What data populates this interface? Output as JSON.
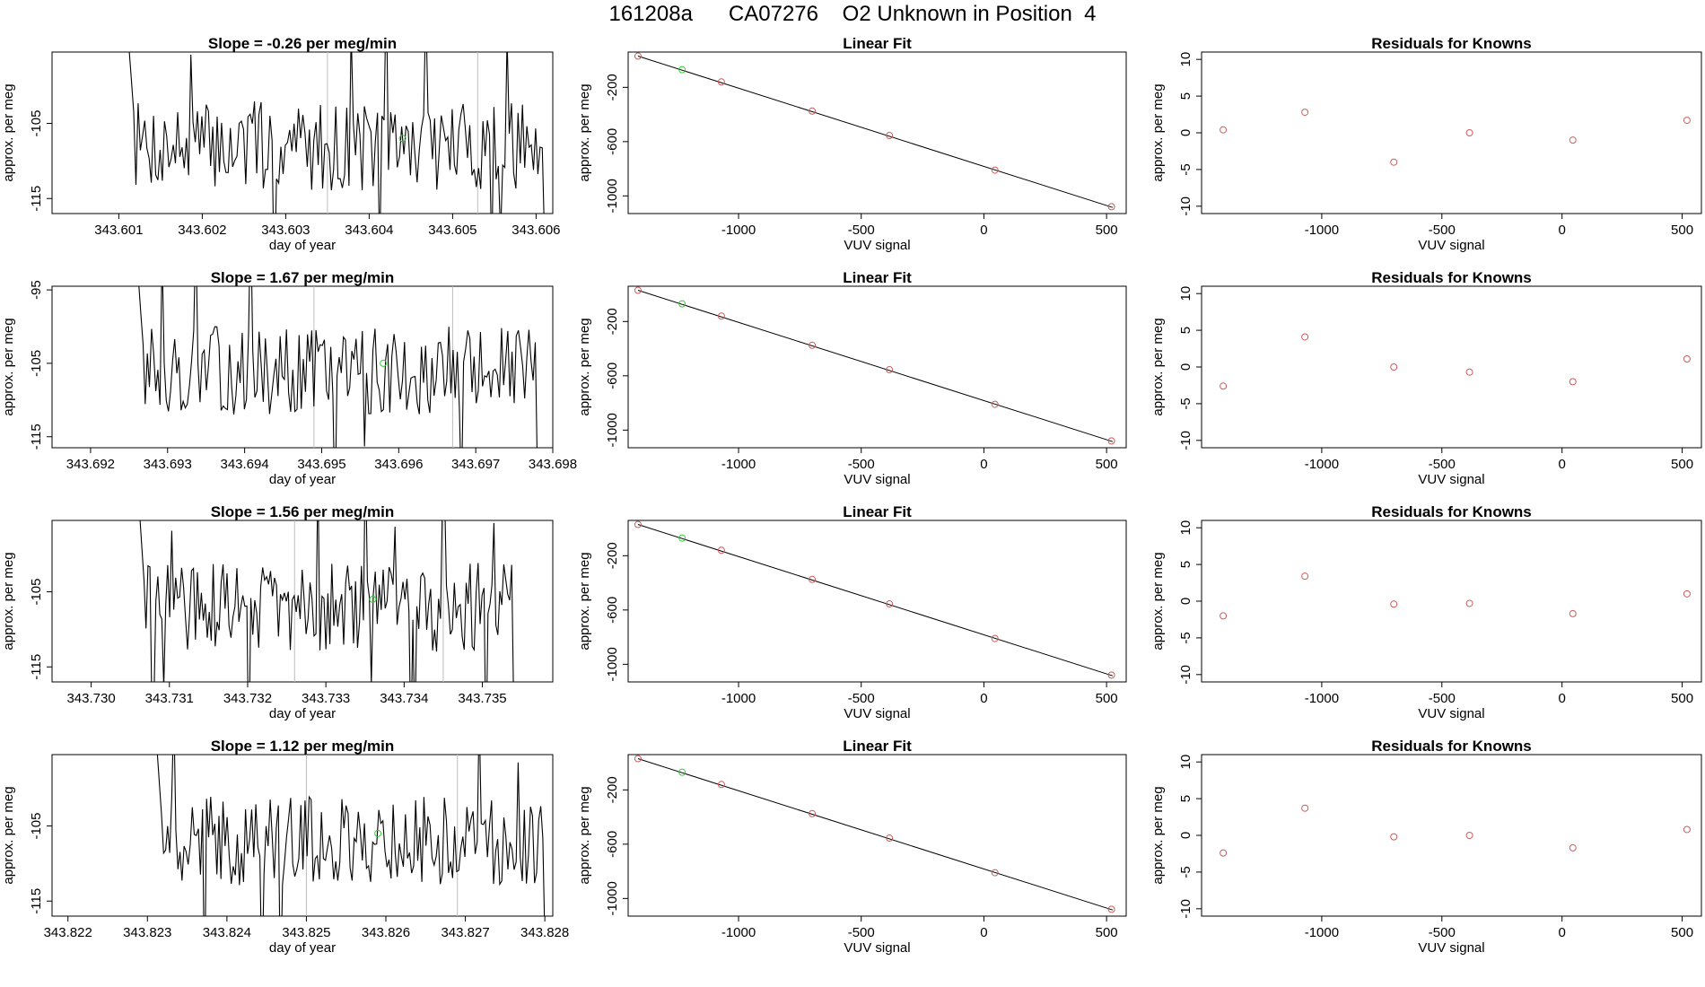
{
  "header": {
    "title": "161208a      CA07276    O2 Unknown in Position  4"
  },
  "colors": {
    "line": "#000000",
    "known": "#cd5c5c",
    "unknown": "#32cd32",
    "vline": "#bebebe"
  },
  "chart_data": [
    {
      "type": "line",
      "panel": "timeseries",
      "title": "Slope =  -0.26  per meg/min",
      "xlabel": "day of year",
      "ylabel": "approx. per meg",
      "xlim": [
        343.6002,
        343.6062
      ],
      "ylim": [
        -117,
        -95.5
      ],
      "xticks": [
        343.601,
        343.602,
        343.603,
        343.604,
        343.605,
        343.606
      ],
      "xtick_labels": [
        "343.601",
        "343.602",
        "343.603",
        "343.604",
        "343.605",
        "343.606"
      ],
      "yticks": [
        -115,
        -105
      ],
      "ytick_labels": [
        "-115",
        "-105"
      ],
      "vlines": [
        343.6035,
        343.6053
      ],
      "unknown_point": {
        "x": 343.6044,
        "y": -107
      },
      "start": 343.6011,
      "end": 343.6061,
      "seed": 7
    },
    {
      "type": "scatter",
      "panel": "fit",
      "title": "Linear Fit",
      "xlabel": "VUV signal",
      "ylabel": "approx. per meg",
      "xlim": [
        -1450,
        580
      ],
      "ylim": [
        -1130,
        60
      ],
      "xticks": [
        -1000,
        -500,
        0,
        500
      ],
      "xtick_labels": [
        "-1000",
        "-500",
        "0",
        "500"
      ],
      "yticks": [
        -1000,
        -600,
        -200
      ],
      "ytick_labels": [
        "-1000",
        "-600",
        "-200"
      ],
      "line": {
        "x": [
          -1410,
          525
        ],
        "y": [
          30,
          -1085
        ]
      },
      "points": [
        {
          "x": -1410,
          "y": 30
        },
        {
          "x": -1070,
          "y": -160
        },
        {
          "x": -700,
          "y": -375
        },
        {
          "x": -385,
          "y": -555
        },
        {
          "x": 45,
          "y": -810
        },
        {
          "x": 520,
          "y": -1080
        }
      ],
      "unknown_point": {
        "x": -1230,
        "y": -70
      }
    },
    {
      "type": "scatter",
      "panel": "residuals",
      "title": "Residuals for Knowns",
      "xlabel": "VUV signal",
      "ylabel": "approx. per meg",
      "xlim": [
        -1500,
        580
      ],
      "ylim": [
        -11,
        11
      ],
      "xticks": [
        -1000,
        -500,
        0,
        500
      ],
      "xtick_labels": [
        "-1000",
        "-500",
        "0",
        "500"
      ],
      "yticks": [
        -10,
        -5,
        0,
        5,
        10
      ],
      "ytick_labels": [
        "-10",
        "-5",
        "0",
        "5",
        "10"
      ],
      "points": [
        {
          "x": -1410,
          "y": 0.4
        },
        {
          "x": -1070,
          "y": 2.8
        },
        {
          "x": -700,
          "y": -4
        },
        {
          "x": -385,
          "y": 0
        },
        {
          "x": 45,
          "y": -1
        },
        {
          "x": 520,
          "y": 1.7
        }
      ]
    },
    {
      "type": "line",
      "panel": "timeseries",
      "title": "Slope =  1.67  per meg/min",
      "xlabel": "day of year",
      "ylabel": "approx. per meg",
      "xlim": [
        343.6915,
        343.698
      ],
      "ylim": [
        -116.5,
        -94.5
      ],
      "xticks": [
        343.692,
        343.693,
        343.694,
        343.695,
        343.696,
        343.697,
        343.698
      ],
      "xtick_labels": [
        "343.692",
        "343.693",
        "343.694",
        "343.695",
        "343.696",
        "343.697",
        "343.698"
      ],
      "yticks": [
        -115,
        -105,
        -95
      ],
      "ytick_labels": [
        "-115",
        "-105",
        "-95"
      ],
      "vlines": [
        343.6949,
        343.6967
      ],
      "unknown_point": {
        "x": 343.6958,
        "y": -105
      },
      "start": 343.6926,
      "end": 343.6978,
      "seed": 13
    },
    {
      "type": "scatter",
      "panel": "fit",
      "title": "Linear Fit",
      "xlabel": "VUV signal",
      "ylabel": "approx. per meg",
      "xlim": [
        -1450,
        580
      ],
      "ylim": [
        -1130,
        60
      ],
      "xticks": [
        -1000,
        -500,
        0,
        500
      ],
      "xtick_labels": [
        "-1000",
        "-500",
        "0",
        "500"
      ],
      "yticks": [
        -1000,
        -600,
        -200
      ],
      "ytick_labels": [
        "-1000",
        "-600",
        "-200"
      ],
      "line": {
        "x": [
          -1410,
          525
        ],
        "y": [
          30,
          -1085
        ]
      },
      "points": [
        {
          "x": -1410,
          "y": 30
        },
        {
          "x": -1070,
          "y": -160
        },
        {
          "x": -700,
          "y": -375
        },
        {
          "x": -385,
          "y": -555
        },
        {
          "x": 45,
          "y": -810
        },
        {
          "x": 520,
          "y": -1080
        }
      ],
      "unknown_point": {
        "x": -1230,
        "y": -70
      }
    },
    {
      "type": "scatter",
      "panel": "residuals",
      "title": "Residuals for Knowns",
      "xlabel": "VUV signal",
      "ylabel": "approx. per meg",
      "xlim": [
        -1500,
        580
      ],
      "ylim": [
        -11,
        11
      ],
      "xticks": [
        -1000,
        -500,
        0,
        500
      ],
      "xtick_labels": [
        "-1000",
        "-500",
        "0",
        "500"
      ],
      "yticks": [
        -10,
        -5,
        0,
        5,
        10
      ],
      "ytick_labels": [
        "-10",
        "-5",
        "0",
        "5",
        "10"
      ],
      "points": [
        {
          "x": -1410,
          "y": -2.6
        },
        {
          "x": -1070,
          "y": 4.1
        },
        {
          "x": -700,
          "y": 0
        },
        {
          "x": -385,
          "y": -0.7
        },
        {
          "x": 45,
          "y": -2
        },
        {
          "x": 520,
          "y": 1.1
        }
      ]
    },
    {
      "type": "line",
      "panel": "timeseries",
      "title": "Slope =  1.56  per meg/min",
      "xlabel": "day of year",
      "ylabel": "approx. per meg",
      "xlim": [
        343.7295,
        343.7359
      ],
      "ylim": [
        -117,
        -95.5
      ],
      "xticks": [
        343.73,
        343.731,
        343.732,
        343.733,
        343.734,
        343.735
      ],
      "xtick_labels": [
        "343.730",
        "343.731",
        "343.732",
        "343.733",
        "343.734",
        "343.735"
      ],
      "yticks": [
        -115,
        -105
      ],
      "ytick_labels": [
        "-115",
        "-105"
      ],
      "vlines": [
        343.7326,
        343.7345
      ],
      "unknown_point": {
        "x": 343.7336,
        "y": -106
      },
      "start": 343.7306,
      "end": 343.7354,
      "seed": 29
    },
    {
      "type": "scatter",
      "panel": "fit",
      "title": "Linear Fit",
      "xlabel": "VUV signal",
      "ylabel": "approx. per meg",
      "xlim": [
        -1450,
        580
      ],
      "ylim": [
        -1130,
        60
      ],
      "xticks": [
        -1000,
        -500,
        0,
        500
      ],
      "xtick_labels": [
        "-1000",
        "-500",
        "0",
        "500"
      ],
      "yticks": [
        -1000,
        -600,
        -200
      ],
      "ytick_labels": [
        "-1000",
        "-600",
        "-200"
      ],
      "line": {
        "x": [
          -1410,
          525
        ],
        "y": [
          30,
          -1085
        ]
      },
      "points": [
        {
          "x": -1410,
          "y": 30
        },
        {
          "x": -1070,
          "y": -160
        },
        {
          "x": -700,
          "y": -375
        },
        {
          "x": -385,
          "y": -555
        },
        {
          "x": 45,
          "y": -810
        },
        {
          "x": 520,
          "y": -1080
        }
      ],
      "unknown_point": {
        "x": -1230,
        "y": -70
      }
    },
    {
      "type": "scatter",
      "panel": "residuals",
      "title": "Residuals for Knowns",
      "xlabel": "VUV signal",
      "ylabel": "approx. per meg",
      "xlim": [
        -1500,
        580
      ],
      "ylim": [
        -11,
        11
      ],
      "xticks": [
        -1000,
        -500,
        0,
        500
      ],
      "xtick_labels": [
        "-1000",
        "-500",
        "0",
        "500"
      ],
      "yticks": [
        -10,
        -5,
        0,
        5,
        10
      ],
      "ytick_labels": [
        "-10",
        "-5",
        "0",
        "5",
        "10"
      ],
      "points": [
        {
          "x": -1410,
          "y": -2
        },
        {
          "x": -1070,
          "y": 3.4
        },
        {
          "x": -700,
          "y": -0.4
        },
        {
          "x": -385,
          "y": -0.3
        },
        {
          "x": 45,
          "y": -1.7
        },
        {
          "x": 520,
          "y": 1
        }
      ]
    },
    {
      "type": "line",
      "panel": "timeseries",
      "title": "Slope =  1.12  per meg/min",
      "xlabel": "day of year",
      "ylabel": "approx. per meg",
      "xlim": [
        343.8218,
        343.8281
      ],
      "ylim": [
        -117,
        -95.5
      ],
      "xticks": [
        343.822,
        343.823,
        343.824,
        343.825,
        343.826,
        343.827,
        343.828
      ],
      "xtick_labels": [
        "343.822",
        "343.823",
        "343.824",
        "343.825",
        "343.826",
        "343.827",
        "343.828"
      ],
      "yticks": [
        -115,
        -105
      ],
      "ytick_labels": [
        "-115",
        "-105"
      ],
      "vlines": [
        343.825,
        343.8269
      ],
      "unknown_point": {
        "x": 343.8259,
        "y": -106
      },
      "start": 343.8231,
      "end": 343.828,
      "seed": 41
    },
    {
      "type": "scatter",
      "panel": "fit",
      "title": "Linear Fit",
      "xlabel": "VUV signal",
      "ylabel": "approx. per meg",
      "xlim": [
        -1450,
        580
      ],
      "ylim": [
        -1130,
        60
      ],
      "xticks": [
        -1000,
        -500,
        0,
        500
      ],
      "xtick_labels": [
        "-1000",
        "-500",
        "0",
        "500"
      ],
      "yticks": [
        -1000,
        -600,
        -200
      ],
      "ytick_labels": [
        "-1000",
        "-600",
        "-200"
      ],
      "line": {
        "x": [
          -1410,
          525
        ],
        "y": [
          30,
          -1085
        ]
      },
      "points": [
        {
          "x": -1410,
          "y": 30
        },
        {
          "x": -1070,
          "y": -160
        },
        {
          "x": -700,
          "y": -375
        },
        {
          "x": -385,
          "y": -555
        },
        {
          "x": 45,
          "y": -810
        },
        {
          "x": 520,
          "y": -1080
        }
      ],
      "unknown_point": {
        "x": -1230,
        "y": -70
      }
    },
    {
      "type": "scatter",
      "panel": "residuals",
      "title": "Residuals for Knowns",
      "xlabel": "VUV signal",
      "ylabel": "approx. per meg",
      "xlim": [
        -1500,
        580
      ],
      "ylim": [
        -11,
        11
      ],
      "xticks": [
        -1000,
        -500,
        0,
        500
      ],
      "xtick_labels": [
        "-1000",
        "-500",
        "0",
        "500"
      ],
      "yticks": [
        -10,
        -5,
        0,
        5,
        10
      ],
      "ytick_labels": [
        "-10",
        "-5",
        "0",
        "5",
        "10"
      ],
      "points": [
        {
          "x": -1410,
          "y": -2.4
        },
        {
          "x": -1070,
          "y": 3.7
        },
        {
          "x": -700,
          "y": -0.2
        },
        {
          "x": -385,
          "y": 0
        },
        {
          "x": 45,
          "y": -1.7
        },
        {
          "x": 520,
          "y": 0.8
        }
      ]
    }
  ]
}
